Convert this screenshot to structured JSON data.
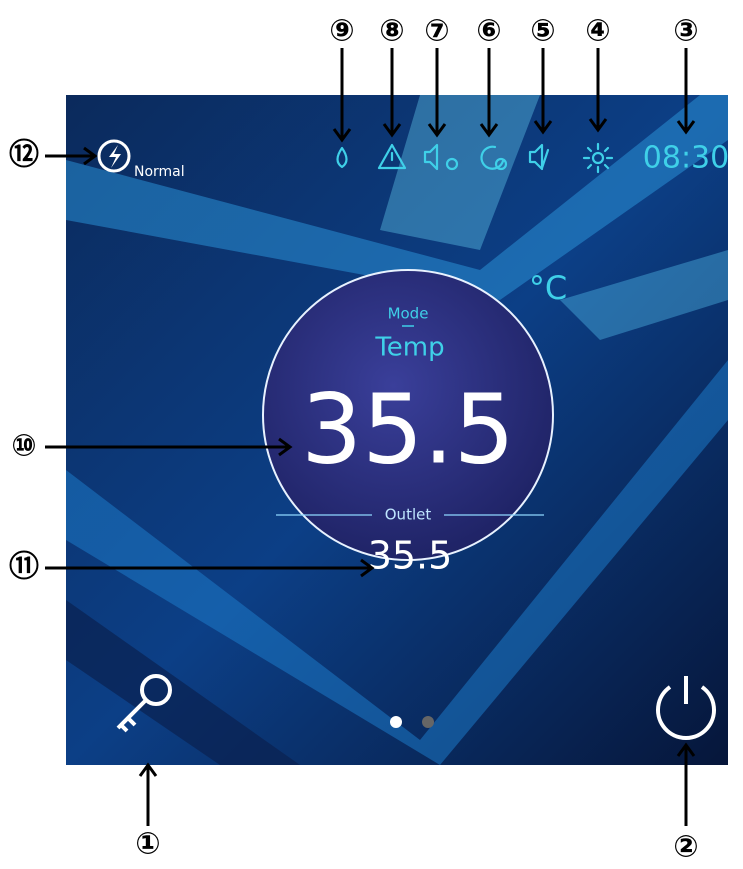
{
  "status_bar": {
    "time": "08:30",
    "mode_label": "Normal"
  },
  "display": {
    "unit": "°C",
    "mode_label": "Mode",
    "mode_value": "Temp",
    "set_temp": "35.5",
    "outlet_label": "Outlet",
    "outlet_temp": "35.5"
  },
  "callouts": [
    "①",
    "②",
    "③",
    "④",
    "⑤",
    "⑥",
    "⑦",
    "⑧",
    "⑨",
    "⑩",
    "⑪",
    "⑫"
  ]
}
